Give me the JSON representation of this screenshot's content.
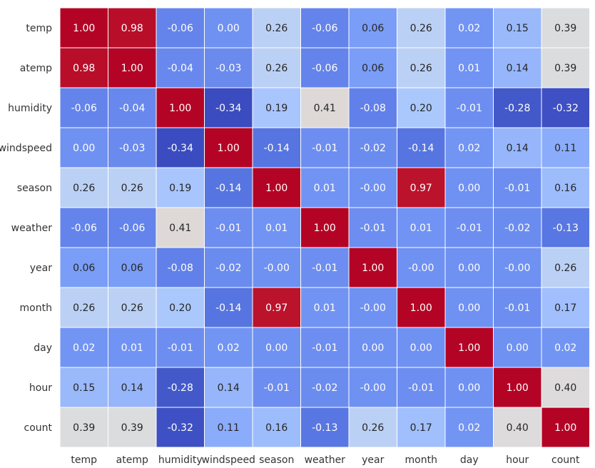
{
  "chart_data": {
    "type": "heatmap",
    "x_categories": [
      "temp",
      "atemp",
      "humidity",
      "windspeed",
      "season",
      "weather",
      "year",
      "month",
      "day",
      "hour",
      "count"
    ],
    "y_categories": [
      "temp",
      "atemp",
      "humidity",
      "windspeed",
      "season",
      "weather",
      "year",
      "month",
      "day",
      "hour",
      "count"
    ],
    "values": [
      [
        1.0,
        0.98,
        -0.06,
        0.0,
        0.26,
        -0.06,
        0.06,
        0.26,
        0.02,
        0.15,
        0.39
      ],
      [
        0.98,
        1.0,
        -0.04,
        -0.03,
        0.26,
        -0.06,
        0.06,
        0.26,
        0.01,
        0.14,
        0.39
      ],
      [
        -0.06,
        -0.04,
        1.0,
        -0.34,
        0.19,
        0.41,
        -0.08,
        0.2,
        -0.01,
        -0.28,
        -0.32
      ],
      [
        0.0,
        -0.03,
        -0.34,
        1.0,
        -0.14,
        -0.01,
        -0.02,
        -0.14,
        0.02,
        0.14,
        0.11
      ],
      [
        0.26,
        0.26,
        0.19,
        -0.14,
        1.0,
        0.01,
        -0.0,
        0.97,
        0.0,
        -0.01,
        0.16
      ],
      [
        -0.06,
        -0.06,
        0.41,
        -0.01,
        0.01,
        1.0,
        -0.01,
        0.01,
        -0.01,
        -0.02,
        -0.13
      ],
      [
        0.06,
        0.06,
        -0.08,
        -0.02,
        -0.0,
        -0.01,
        1.0,
        -0.0,
        0.0,
        -0.0,
        0.26
      ],
      [
        0.26,
        0.26,
        0.2,
        -0.14,
        0.97,
        0.01,
        -0.0,
        1.0,
        0.0,
        -0.01,
        0.17
      ],
      [
        0.02,
        0.01,
        -0.01,
        0.02,
        0.0,
        -0.01,
        0.0,
        0.0,
        1.0,
        0.0,
        0.02
      ],
      [
        0.15,
        0.14,
        -0.28,
        0.14,
        -0.01,
        -0.02,
        -0.0,
        -0.01,
        0.0,
        1.0,
        0.4
      ],
      [
        0.39,
        0.39,
        -0.32,
        0.11,
        0.16,
        -0.13,
        0.26,
        0.17,
        0.02,
        0.4,
        1.0
      ]
    ],
    "value_format": "0.00",
    "colormap": "coolwarm",
    "color_scale": {
      "min_value": -0.34,
      "max_value": 1.0,
      "low_color": "#3b4cc0",
      "mid_color": "#dddddd",
      "high_color": "#b40426"
    },
    "cell_border_color": "#ffffff",
    "annotations": true,
    "colorbar": false,
    "title": "",
    "xlabel": "",
    "ylabel": ""
  }
}
